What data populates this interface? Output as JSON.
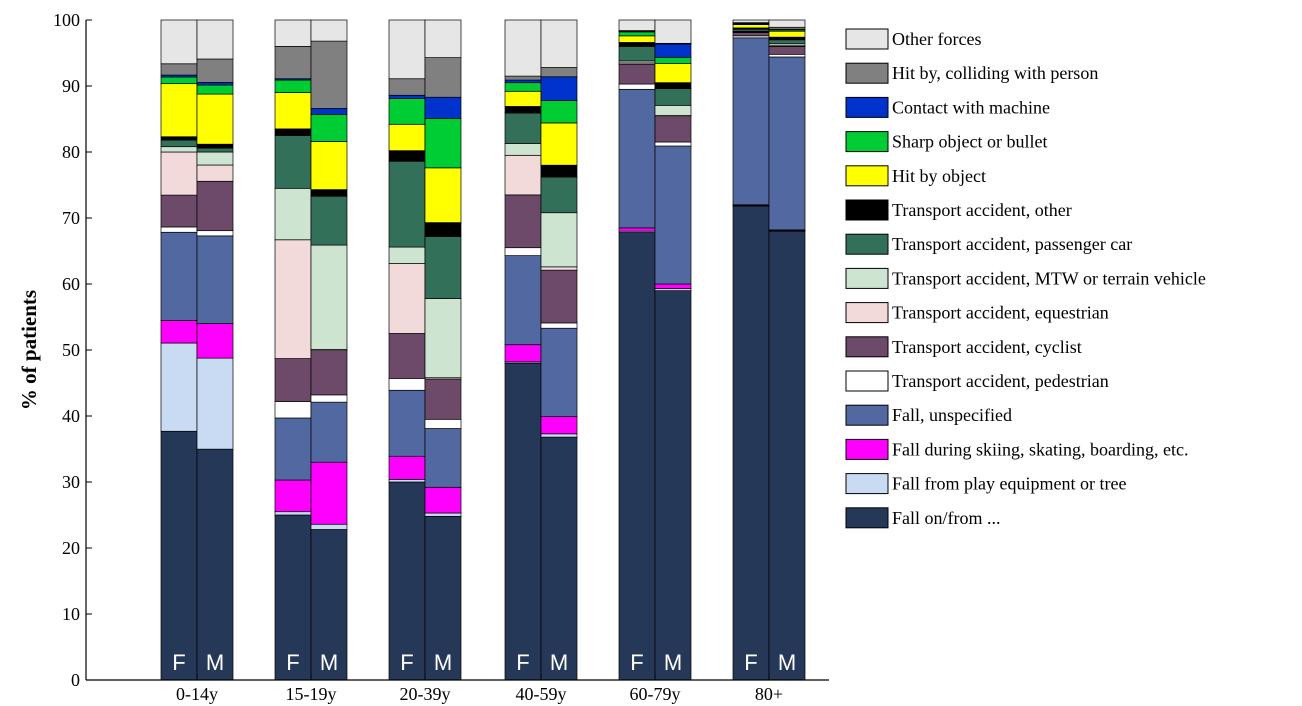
{
  "chart_data": {
    "type": "bar",
    "stacked": true,
    "ylabel": "% of patients",
    "xlabel": "",
    "ylim": [
      0,
      100
    ],
    "yticks": [
      0,
      10,
      20,
      30,
      40,
      50,
      60,
      70,
      80,
      90,
      100
    ],
    "grid": false,
    "legend_position": "right",
    "categories": [
      "0-14y",
      "15-19y",
      "20-39y",
      "40-59y",
      "60-79y",
      "80+"
    ],
    "sex_labels": [
      "F",
      "M"
    ],
    "stack_order": [
      "Fall on/from ...",
      "Fall from play equipment or tree",
      "Fall during skiing, skating, boarding, etc.",
      "Fall, unspecified",
      "Transport accident, pedestrian",
      "Transport accident, cyclist",
      "Transport accident, equestrian",
      "Transport accident, MTW or terrain vehicle",
      "Transport accident, passenger car",
      "Transport accident, other",
      "Hit by object",
      "Sharp object or bullet",
      "Contact with machine",
      "Hit by, colliding with person",
      "Other forces"
    ],
    "colors": {
      "Fall on/from ...": "#263858",
      "Fall from play equipment or tree": "#c8dbf2",
      "Fall during skiing, skating, boarding, etc.": "#ff00ff",
      "Fall, unspecified": "#5268a0",
      "Transport accident, pedestrian": "#ffffff",
      "Transport accident, cyclist": "#6e4a6a",
      "Transport accident, equestrian": "#f2dada",
      "Transport accident, MTW or terrain vehicle": "#cde4d0",
      "Transport accident, passenger car": "#33705a",
      "Transport accident, other": "#000000",
      "Hit by object": "#ffff00",
      "Sharp object or bullet": "#00cc33",
      "Contact with machine": "#0033cc",
      "Hit by, colliding with person": "#808080",
      "Other forces": "#e6e6e6"
    },
    "legend": [
      "Other forces",
      "Hit by, colliding with person",
      "Contact with machine",
      "Sharp object or bullet",
      "Hit by object",
      "Transport accident, other",
      "Transport accident, passenger car",
      "Transport accident, MTW or terrain vehicle",
      "Transport accident, equestrian",
      "Transport accident, cyclist",
      "Transport accident, pedestrian",
      "Fall, unspecified",
      "Fall during skiing, skating, boarding, etc.",
      "Fall from play equipment or tree",
      "Fall on/from ..."
    ],
    "bars": [
      {
        "category": "0-14y",
        "sex": "F",
        "values": [
          37.5,
          13.3,
          3.4,
          13.3,
          0.8,
          4.8,
          6.5,
          0.8,
          1.0,
          0.5,
          8.0,
          1.0,
          0.3,
          1.7,
          6.6
        ]
      },
      {
        "category": "0-14y",
        "sex": "M",
        "values": [
          35.5,
          14.0,
          5.3,
          13.5,
          0.8,
          7.6,
          2.5,
          2.0,
          0.6,
          0.6,
          7.7,
          1.4,
          0.4,
          3.6,
          6.0
        ]
      },
      {
        "category": "15-19y",
        "sex": "F",
        "values": [
          25.0,
          0.5,
          4.8,
          9.4,
          2.5,
          6.5,
          18.0,
          7.8,
          8.0,
          1.0,
          5.5,
          1.9,
          0.2,
          4.9,
          4.0
        ]
      },
      {
        "category": "15-19y",
        "sex": "M",
        "values": [
          22.8,
          0.8,
          9.4,
          9.1,
          1.1,
          6.7,
          0.2,
          15.8,
          7.4,
          1.0,
          7.3,
          4.1,
          0.9,
          10.2,
          3.2
        ]
      },
      {
        "category": "20-39y",
        "sex": "F",
        "values": [
          30.0,
          0.4,
          3.5,
          10.0,
          1.8,
          6.8,
          10.6,
          2.5,
          13.0,
          1.6,
          4.0,
          3.9,
          0.5,
          2.5,
          8.9
        ]
      },
      {
        "category": "20-39y",
        "sex": "M",
        "values": [
          24.8,
          0.5,
          3.9,
          8.9,
          1.4,
          6.1,
          0.2,
          12.0,
          9.4,
          2.1,
          8.3,
          7.5,
          3.2,
          6.0,
          5.7
        ]
      },
      {
        "category": "40-59y",
        "sex": "F",
        "values": [
          48.0,
          0.2,
          2.6,
          13.5,
          1.2,
          8.0,
          6.0,
          1.8,
          4.6,
          1.0,
          2.3,
          1.3,
          0.4,
          0.6,
          8.5
        ]
      },
      {
        "category": "40-59y",
        "sex": "M",
        "values": [
          36.8,
          0.5,
          2.6,
          13.4,
          0.8,
          8.0,
          0.5,
          8.2,
          5.4,
          1.8,
          6.4,
          3.4,
          3.6,
          1.4,
          7.2
        ]
      },
      {
        "category": "60-79y",
        "sex": "F",
        "values": [
          67.8,
          0.2,
          0.5,
          21.0,
          0.8,
          3.0,
          0.2,
          0.3,
          2.2,
          0.6,
          1.0,
          0.6,
          0.1,
          0.1,
          1.6
        ]
      },
      {
        "category": "60-79y",
        "sex": "M",
        "values": [
          58.4,
          0.3,
          0.7,
          20.7,
          0.6,
          3.8,
          0.2,
          1.5,
          2.5,
          0.9,
          2.9,
          0.9,
          2.0,
          0.1,
          3.5
        ]
      },
      {
        "category": "80+",
        "sex": "F",
        "values": [
          71.8,
          0.1,
          0.1,
          25.3,
          0.3,
          0.5,
          0.1,
          0.1,
          0.3,
          0.2,
          0.5,
          0.1,
          0.1,
          0.1,
          0.4
        ]
      },
      {
        "category": "80+",
        "sex": "M",
        "values": [
          68.0,
          0.1,
          0.1,
          26.2,
          0.4,
          1.2,
          0.1,
          0.3,
          0.6,
          0.4,
          0.9,
          0.2,
          0.1,
          0.3,
          1.1
        ]
      }
    ]
  }
}
